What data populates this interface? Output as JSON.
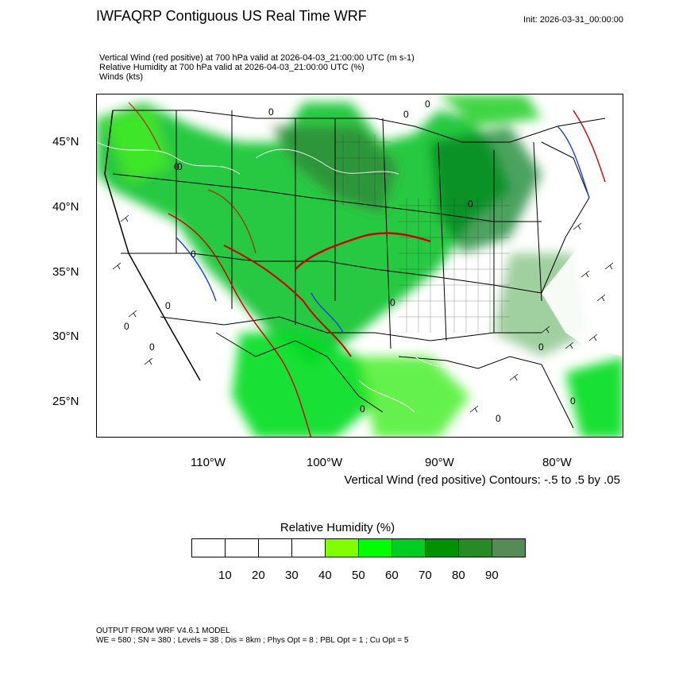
{
  "header": {
    "title": "IWFAQRP Contiguous US Real Time WRF",
    "init": "Init: 2026-03-31_00:00:00"
  },
  "subtitles": [
    "Vertical Wind (red positive) at 700 hPa valid at 2026-04-03_21:00:00 UTC   (m s-1)",
    "Relative Humidity at 700 hPa valid at 2026-04-03_21:00:00 UTC   (%)",
    "Winds   (kts)"
  ],
  "map": {
    "lat_labels": [
      "45°N",
      "40°N",
      "35°N",
      "30°N",
      "25°N"
    ],
    "lon_labels": [
      "110°W",
      "100°W",
      "90°W",
      "80°W"
    ],
    "contour_info": "Vertical Wind (red positive) Contours: -.5 to .5 by .05",
    "contour_zero_label": "0",
    "colors": {
      "positive": "#cc0000",
      "negative": "#1f3fd8",
      "border": "#000000",
      "water": "#ffffff"
    }
  },
  "colorbar": {
    "title": "Relative Humidity  (%)",
    "colors": [
      "#ffffff",
      "#ffffff",
      "#ffffff",
      "#ffffff",
      "#80ff00",
      "#00ff00",
      "#00cc22",
      "#009100",
      "#258c25",
      "#568a56"
    ],
    "labels": [
      "10",
      "20",
      "30",
      "40",
      "50",
      "60",
      "70",
      "80",
      "90"
    ]
  },
  "footer": {
    "line1": "OUTPUT FROM WRF V4.6.1 MODEL",
    "line2": "WE = 580 ; SN = 380 ; Levels = 38 ; Dis = 8km ; Phys Opt = 8 ; PBL Opt = 1 ; Cu Opt = 5"
  }
}
